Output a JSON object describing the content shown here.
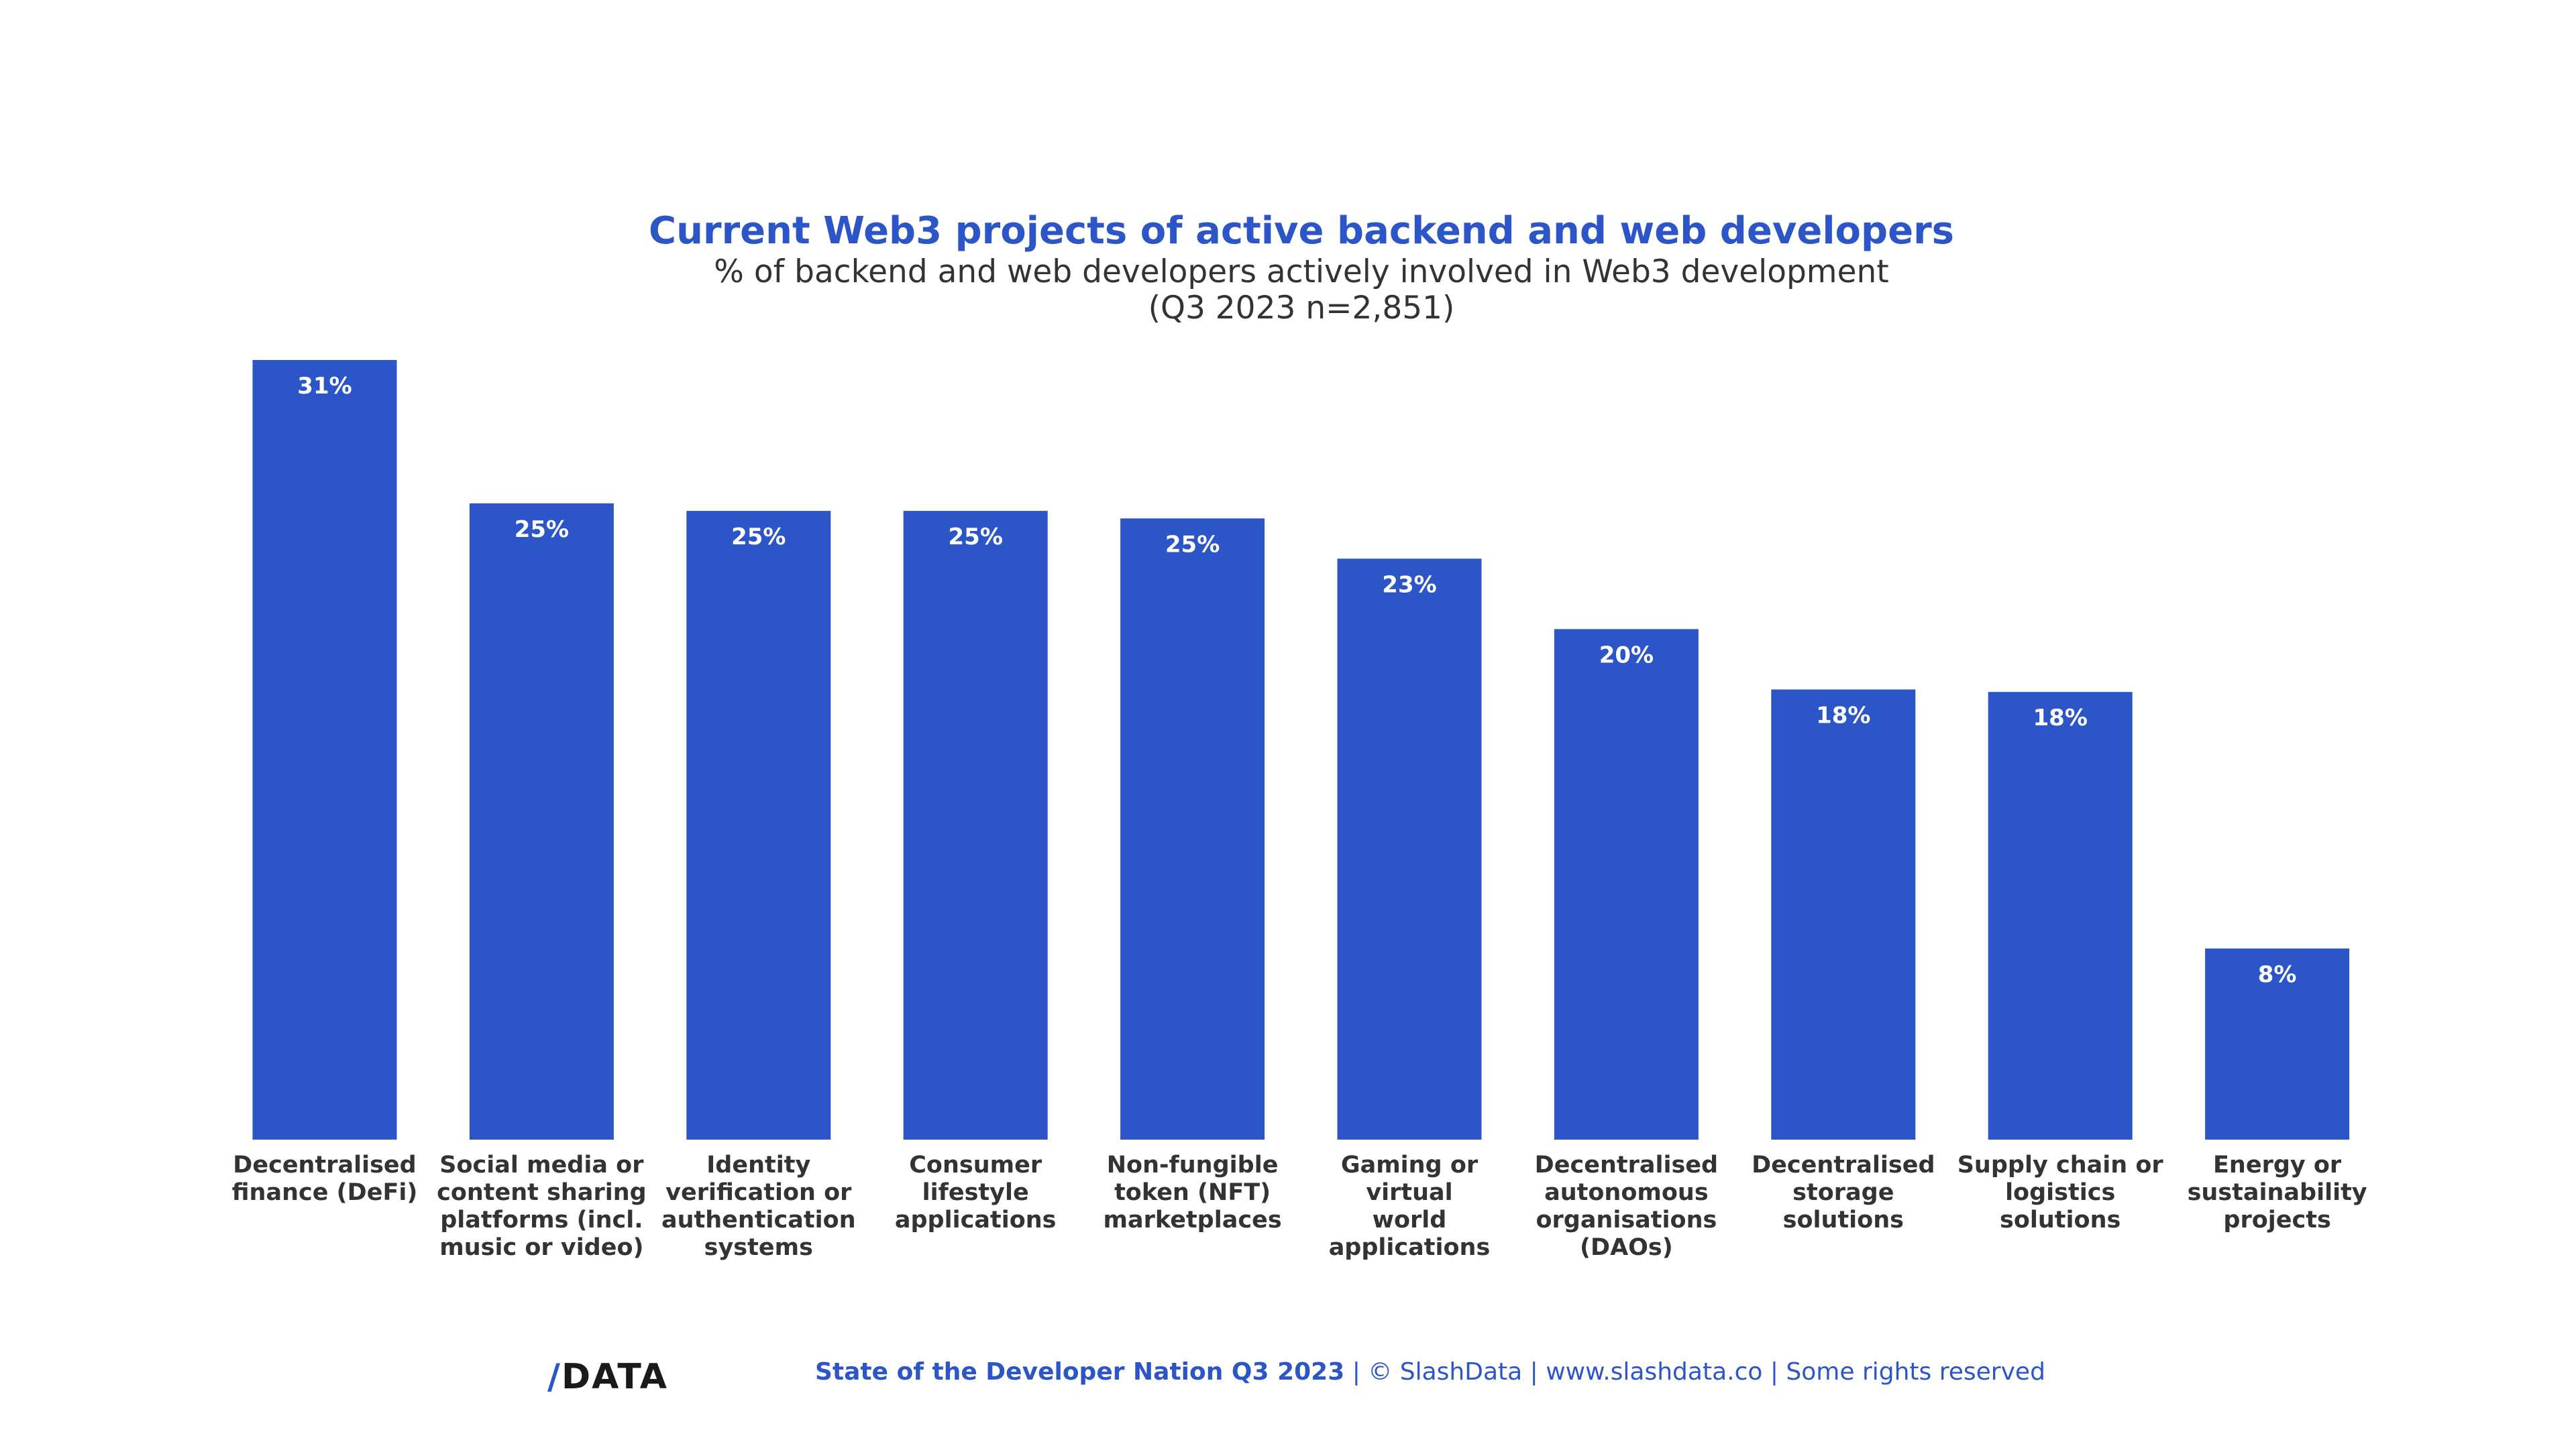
{
  "chart_data": {
    "type": "bar",
    "title": "Current Web3 projects of active backend and web developers",
    "subtitle": [
      "% of backend and web developers actively involved in Web3 development",
      "(Q3 2023 n=2,851)"
    ],
    "categories": [
      "Decentralised\nfinance (DeFi)",
      "Social media or\ncontent sharing\nplatforms (incl.\nmusic or video)",
      "Identity\nverification or\nauthentication\nsystems",
      "Consumer\nlifestyle\napplications",
      "Non-fungible\ntoken (NFT)\nmarketplaces",
      "Gaming or virtual\nworld\napplications",
      "Decentralised\nautonomous\norganisations\n(DAOs)",
      "Decentralised\nstorage\nsolutions",
      "Supply chain or\nlogistics\nsolutions",
      "Energy or\nsustainability\nprojects"
    ],
    "values": [
      31,
      25.3,
      25.0,
      25.0,
      24.7,
      23.1,
      20.3,
      17.9,
      17.8,
      7.6
    ],
    "data_labels": [
      "31%",
      "25%",
      "25%",
      "25%",
      "25%",
      "23%",
      "20%",
      "18%",
      "18%",
      "8%"
    ],
    "ylim": [
      0,
      31
    ],
    "grid": false,
    "bar_color": "#2c56c7"
  },
  "footer": {
    "logo": "/DATA",
    "source": "State of the Developer Nation Q3 2023",
    "rest": " | © SlashData | www.slashdata.co | Some rights reserved"
  }
}
